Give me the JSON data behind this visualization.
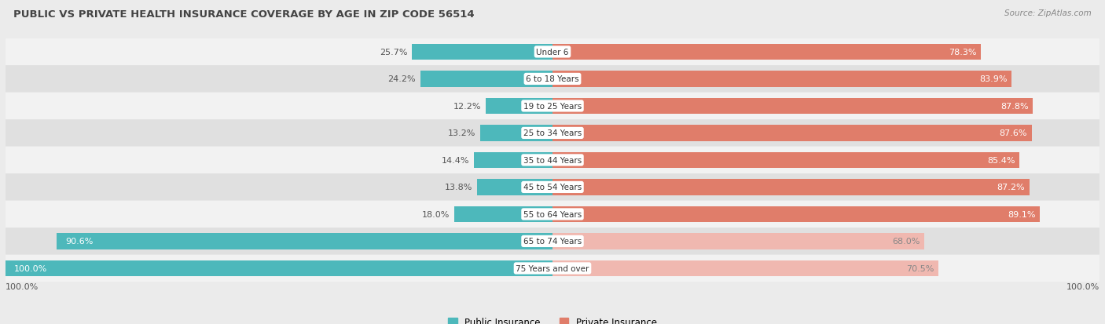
{
  "title": "PUBLIC VS PRIVATE HEALTH INSURANCE COVERAGE BY AGE IN ZIP CODE 56514",
  "source": "Source: ZipAtlas.com",
  "categories": [
    "Under 6",
    "6 to 18 Years",
    "19 to 25 Years",
    "25 to 34 Years",
    "35 to 44 Years",
    "45 to 54 Years",
    "55 to 64 Years",
    "65 to 74 Years",
    "75 Years and over"
  ],
  "public_values": [
    25.7,
    24.2,
    12.2,
    13.2,
    14.4,
    13.8,
    18.0,
    90.6,
    100.0
  ],
  "private_values": [
    78.3,
    83.9,
    87.8,
    87.6,
    85.4,
    87.2,
    89.1,
    68.0,
    70.5
  ],
  "public_color": "#4db8bb",
  "private_color_high": "#e07d6a",
  "private_color_low": "#f0b8b0",
  "bar_height": 0.6,
  "bg_color": "#ebebeb",
  "row_colors": [
    "#f2f2f2",
    "#e0e0e0"
  ],
  "label_fontsize": 8.0,
  "title_fontsize": 9.5,
  "max_value": 100.0,
  "private_threshold": 75.0,
  "public_threshold": 50.0
}
